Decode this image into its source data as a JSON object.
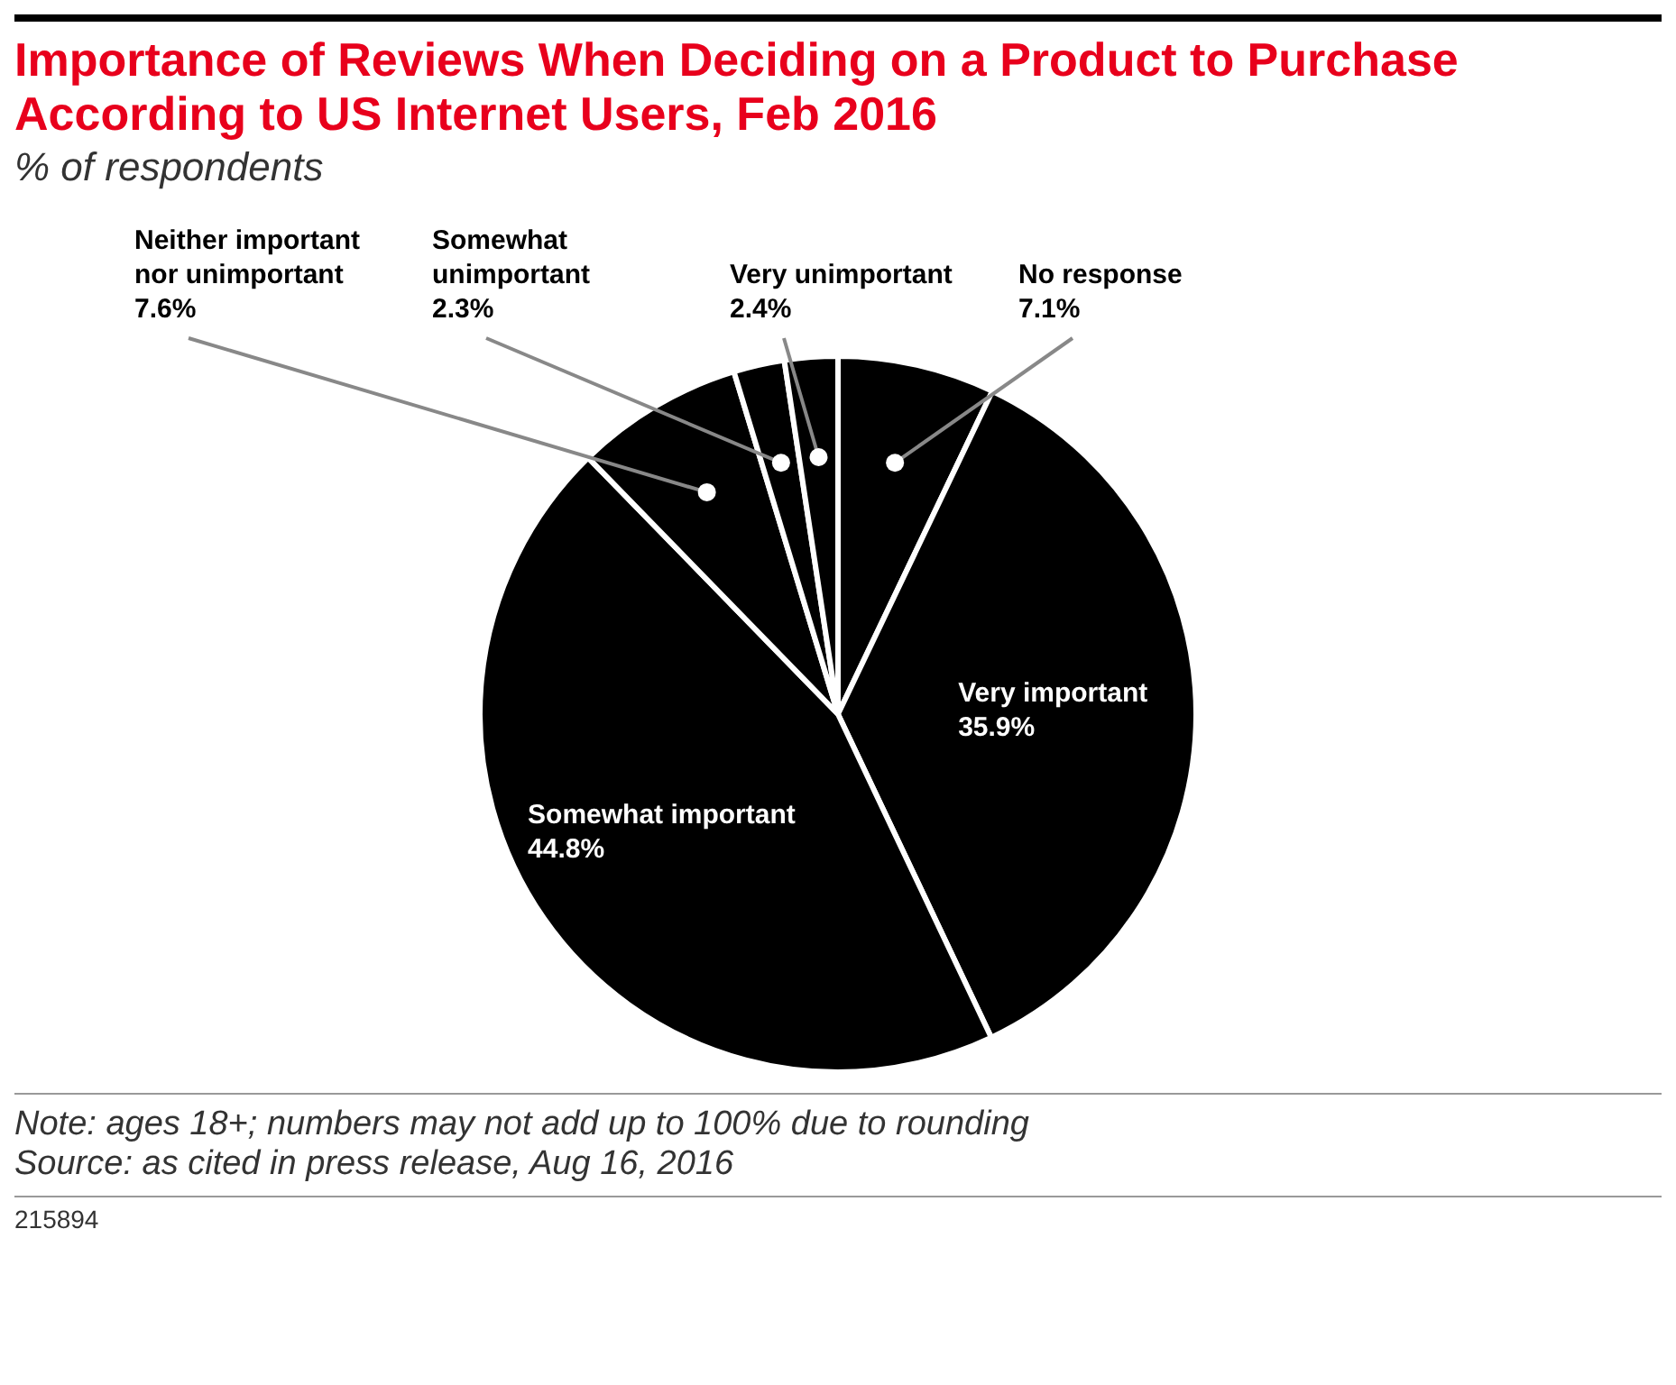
{
  "chart_data": {
    "type": "pie",
    "title": "Importance of Reviews When Deciding on a Product to Purchase According to US Internet Users, Feb 2016",
    "subtitle": "% of respondents",
    "categories": [
      "No response",
      "Very important",
      "Somewhat important",
      "Neither important nor unimportant",
      "Somewhat unimportant",
      "Very unimportant"
    ],
    "values": [
      7.1,
      35.9,
      44.8,
      7.6,
      2.3,
      2.4
    ],
    "colors": [
      "#000000",
      "#000000",
      "#000000",
      "#000000",
      "#000000",
      "#000000"
    ],
    "value_labels": [
      "7.1%",
      "35.9%",
      "44.8%",
      "7.6%",
      "2.3%",
      "2.4%"
    ],
    "annotations": [
      "Note: ages 18+; numbers may not add up to 100% due to rounding",
      "Source: as cited in press release, Aug 16, 2016",
      "215894"
    ]
  }
}
